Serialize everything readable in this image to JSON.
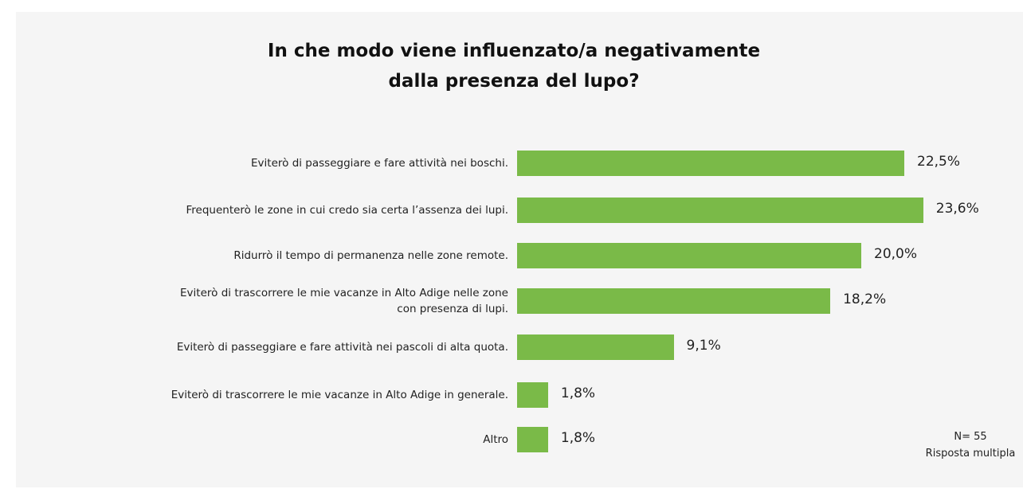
{
  "chart_data": {
    "type": "barh",
    "title": "In che modo viene influenzato/a negativamente\ndalla presenza del lupo?",
    "categories": [
      "Eviterò di passeggiare e fare attività nei boschi.",
      "Frequenterò le zone in cui credo sia certa l’assenza dei lupi.",
      "Ridurrò il tempo di permanenza nelle zone remote.",
      "Eviterò di trascorrere le mie vacanze in Alto Adige nelle zone\ncon presenza di lupi.",
      "Eviterò di passeggiare e fare attività nei pascoli di alta quota.",
      "Eviterò di trascorrere le mie vacanze in Alto Adige in generale.",
      "Altro"
    ],
    "values": [
      22.5,
      23.6,
      20.0,
      18.2,
      9.1,
      1.8,
      1.8
    ],
    "value_labels": [
      "22,5%",
      "23,6%",
      "20,0%",
      "18,2%",
      "9,1%",
      "1,8%",
      "1,8%"
    ],
    "color": "#7aba48",
    "notes": [
      "N= 55",
      "Risposta multipla"
    ]
  }
}
